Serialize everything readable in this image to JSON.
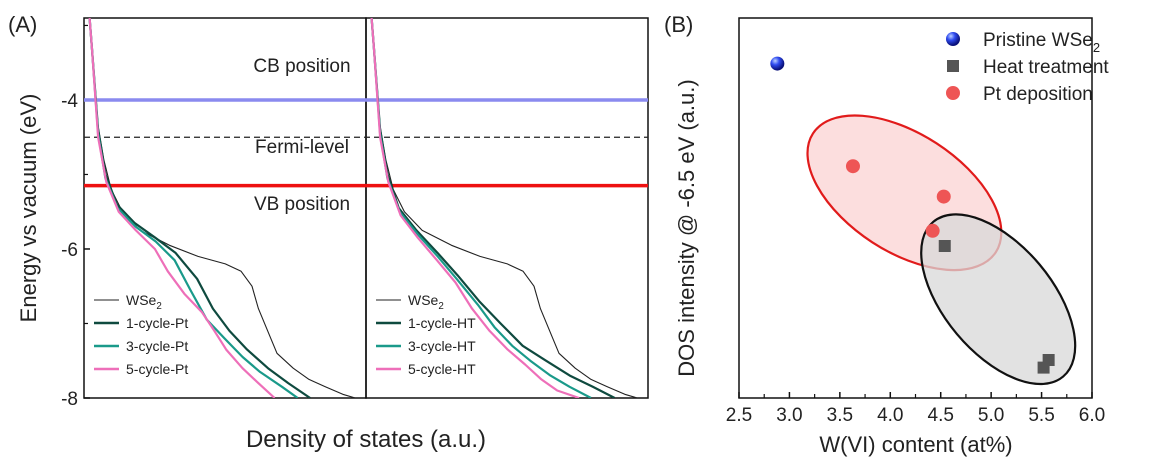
{
  "chart_data": [
    {
      "type": "line",
      "panel_label": "(A)",
      "ylabel": "Energy vs vacuum (eV)",
      "xlabel": "Density of states (a.u.)",
      "ylim": [
        -8,
        -2.9
      ],
      "y_ticks": [
        -4,
        -6,
        -8
      ],
      "y_tick_labels": [
        "-4",
        "-6",
        "-8"
      ],
      "reference_lines": [
        {
          "label": "CB position",
          "y": -4.0,
          "color": "#8a8aef",
          "style": "solid"
        },
        {
          "label": "Fermi-level",
          "y": -4.5,
          "color": "#222222",
          "style": "dashed"
        },
        {
          "label": "VB position",
          "y": -5.15,
          "color": "#ee1111",
          "style": "solid"
        }
      ],
      "subpanels": [
        {
          "legend": [
            {
              "text": "WSe",
              "sub": "2",
              "color": "#222222"
            },
            {
              "text": "1-cycle-Pt",
              "sub": "",
              "color": "#0f4a3f"
            },
            {
              "text": "3-cycle-Pt",
              "sub": "",
              "color": "#1a9a8a"
            },
            {
              "text": "5-cycle-Pt",
              "sub": "",
              "color": "#ee6fb9"
            }
          ],
          "series": [
            {
              "name": "WSe2",
              "color": "#222222",
              "x": [
                0.02,
                0.028,
                0.05,
                0.07,
                0.1,
                0.14,
                0.2,
                0.3,
                0.4,
                0.5,
                0.56,
                0.6,
                0.62,
                0.66,
                0.68,
                0.74,
                0.8,
                0.86,
                0.92,
                0.96
              ],
              "y": [
                -2.9,
                -3.3,
                -4.35,
                -4.8,
                -5.2,
                -5.5,
                -5.75,
                -5.95,
                -6.1,
                -6.2,
                -6.3,
                -6.5,
                -6.8,
                -7.2,
                -7.4,
                -7.6,
                -7.75,
                -7.85,
                -7.95,
                -8.0
              ]
            },
            {
              "name": "1-cycle-Pt",
              "color": "#0f4a3f",
              "x": [
                0.02,
                0.028,
                0.05,
                0.08,
                0.12,
                0.18,
                0.25,
                0.32,
                0.4,
                0.46,
                0.52,
                0.58,
                0.65,
                0.72,
                0.8
              ],
              "y": [
                -2.9,
                -3.3,
                -4.4,
                -5.0,
                -5.4,
                -5.65,
                -5.85,
                -6.05,
                -6.4,
                -6.8,
                -7.1,
                -7.35,
                -7.6,
                -7.8,
                -8.0
              ]
            },
            {
              "name": "3-cycle-Pt",
              "color": "#1a9a8a",
              "x": [
                0.02,
                0.028,
                0.05,
                0.08,
                0.12,
                0.18,
                0.25,
                0.32,
                0.38,
                0.44,
                0.5,
                0.56,
                0.62,
                0.7,
                0.76
              ],
              "y": [
                -2.9,
                -3.3,
                -4.45,
                -5.05,
                -5.45,
                -5.7,
                -5.9,
                -6.15,
                -6.55,
                -6.95,
                -7.2,
                -7.45,
                -7.65,
                -7.85,
                -8.0
              ]
            },
            {
              "name": "5-cycle-Pt",
              "color": "#ee6fb9",
              "x": [
                0.02,
                0.028,
                0.05,
                0.08,
                0.12,
                0.18,
                0.25,
                0.3,
                0.36,
                0.42,
                0.46,
                0.5,
                0.56,
                0.62,
                0.68
              ],
              "y": [
                -2.9,
                -3.3,
                -4.5,
                -5.1,
                -5.5,
                -5.75,
                -6.0,
                -6.3,
                -6.6,
                -6.85,
                -7.1,
                -7.35,
                -7.6,
                -7.8,
                -8.0
              ]
            }
          ]
        },
        {
          "legend": [
            {
              "text": "WSe",
              "sub": "2",
              "color": "#222222"
            },
            {
              "text": "1-cycle-HT",
              "sub": "",
              "color": "#0f4a3f"
            },
            {
              "text": "3-cycle-HT",
              "sub": "",
              "color": "#1a9a8a"
            },
            {
              "text": "5-cycle-HT",
              "sub": "",
              "color": "#ee6fb9"
            }
          ],
          "series": [
            {
              "name": "WSe2",
              "color": "#222222",
              "x": [
                0.02,
                0.028,
                0.05,
                0.07,
                0.1,
                0.14,
                0.2,
                0.3,
                0.4,
                0.5,
                0.56,
                0.6,
                0.62,
                0.66,
                0.68,
                0.74,
                0.8,
                0.86,
                0.92,
                0.96
              ],
              "y": [
                -2.9,
                -3.3,
                -4.35,
                -4.8,
                -5.2,
                -5.5,
                -5.75,
                -5.95,
                -6.1,
                -6.2,
                -6.3,
                -6.5,
                -6.8,
                -7.2,
                -7.4,
                -7.6,
                -7.75,
                -7.85,
                -7.95,
                -8.0
              ]
            },
            {
              "name": "1-cycle-HT",
              "color": "#0f4a3f",
              "x": [
                0.02,
                0.028,
                0.05,
                0.08,
                0.12,
                0.18,
                0.25,
                0.32,
                0.4,
                0.48,
                0.56,
                0.64,
                0.72,
                0.8,
                0.88
              ],
              "y": [
                -2.9,
                -3.3,
                -4.4,
                -5.0,
                -5.45,
                -5.75,
                -6.05,
                -6.35,
                -6.7,
                -7.0,
                -7.3,
                -7.5,
                -7.7,
                -7.85,
                -8.0
              ]
            },
            {
              "name": "3-cycle-HT",
              "color": "#1a9a8a",
              "x": [
                0.02,
                0.028,
                0.05,
                0.08,
                0.12,
                0.18,
                0.25,
                0.32,
                0.4,
                0.46,
                0.52,
                0.58,
                0.65,
                0.72,
                0.8
              ],
              "y": [
                -2.9,
                -3.3,
                -4.45,
                -5.05,
                -5.5,
                -5.8,
                -6.1,
                -6.4,
                -6.75,
                -7.05,
                -7.3,
                -7.5,
                -7.7,
                -7.85,
                -8.0
              ]
            },
            {
              "name": "5-cycle-HT",
              "color": "#ee6fb9",
              "x": [
                0.02,
                0.028,
                0.05,
                0.08,
                0.12,
                0.18,
                0.25,
                0.32,
                0.38,
                0.44,
                0.5,
                0.56,
                0.62,
                0.68,
                0.76
              ],
              "y": [
                -2.9,
                -3.3,
                -4.5,
                -5.1,
                -5.55,
                -5.85,
                -6.15,
                -6.45,
                -6.8,
                -7.1,
                -7.35,
                -7.55,
                -7.75,
                -7.9,
                -8.0
              ]
            }
          ]
        }
      ]
    },
    {
      "type": "scatter",
      "panel_label": "(B)",
      "xlabel": "W(VI) content (at%)",
      "ylabel": "DOS intensity @ -6.5 eV (a.u.)",
      "xlim": [
        2.5,
        6.0
      ],
      "ylim": [
        0,
        1
      ],
      "x_ticks": [
        2.5,
        3.0,
        3.5,
        4.0,
        4.5,
        5.0,
        5.5,
        6.0
      ],
      "x_tick_labels": [
        "2.5",
        "3.0",
        "3.5",
        "4.0",
        "4.5",
        "5.0",
        "5.5",
        "6.0"
      ],
      "legend_position": "top-right",
      "series": [
        {
          "name": "Pristine WSe",
          "name_sub": "2",
          "marker": "sphere",
          "color": "#1a2ee8",
          "x": [
            2.88
          ],
          "y": [
            0.88
          ]
        },
        {
          "name": "Heat treatment",
          "name_sub": "",
          "marker": "square",
          "color": "#555555",
          "x": [
            4.54,
            5.52,
            5.57
          ],
          "y": [
            0.4,
            0.08,
            0.1
          ]
        },
        {
          "name": "Pt deposition",
          "name_sub": "",
          "marker": "circle",
          "color": "#ee5555",
          "x": [
            3.63,
            4.53,
            4.42
          ],
          "y": [
            0.61,
            0.53,
            0.44
          ]
        }
      ],
      "ellipses": [
        {
          "group": "Pt deposition",
          "fill": "#fbd3d3",
          "stroke": "#e11b1b"
        },
        {
          "group": "Heat treatment",
          "fill": "#d8d8d8",
          "stroke": "#111111"
        }
      ]
    }
  ]
}
